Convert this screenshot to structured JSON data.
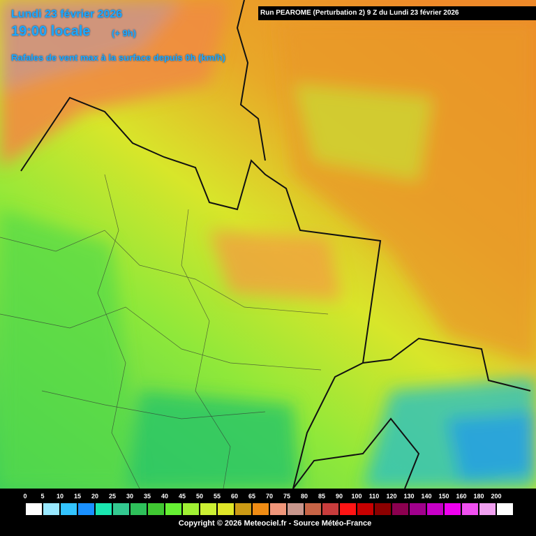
{
  "header": {
    "date": "Lundi 23 février 2026",
    "time": "19:00 locale",
    "offset": "(+ 9h)",
    "subtitle": "Rafales de vent max à la surface depuis 0h (km/h)"
  },
  "run_banner": "Run PEAROME (Perturbation 2) 9 Z du Lundi 23 février 2026",
  "legend": {
    "items": [
      {
        "label": 0,
        "color": "#ffffff"
      },
      {
        "label": 5,
        "color": "#99e8ff"
      },
      {
        "label": 10,
        "color": "#33c4ff"
      },
      {
        "label": 15,
        "color": "#1a90ff"
      },
      {
        "label": 20,
        "color": "#1ae6b0"
      },
      {
        "label": 25,
        "color": "#33c890"
      },
      {
        "label": 30,
        "color": "#2ec05a"
      },
      {
        "label": 35,
        "color": "#40c832"
      },
      {
        "label": 40,
        "color": "#66f033"
      },
      {
        "label": 45,
        "color": "#a0f033"
      },
      {
        "label": 50,
        "color": "#ccf033"
      },
      {
        "label": 55,
        "color": "#e0e628"
      },
      {
        "label": 60,
        "color": "#cc9a14"
      },
      {
        "label": 65,
        "color": "#f08c14"
      },
      {
        "label": 70,
        "color": "#f0967a"
      },
      {
        "label": 75,
        "color": "#c8968c"
      },
      {
        "label": 80,
        "color": "#c86446"
      },
      {
        "label": 85,
        "color": "#c83c3c"
      },
      {
        "label": 90,
        "color": "#ff1414"
      },
      {
        "label": 100,
        "color": "#c80000"
      },
      {
        "label": 110,
        "color": "#8c0000"
      },
      {
        "label": 120,
        "color": "#8c0050"
      },
      {
        "label": 130,
        "color": "#a0008c"
      },
      {
        "label": 140,
        "color": "#c800c8"
      },
      {
        "label": 150,
        "color": "#f000f0"
      },
      {
        "label": 160,
        "color": "#f050f0"
      },
      {
        "label": 180,
        "color": "#f0a0f0"
      },
      {
        "label": 200,
        "color": "#ffffff"
      }
    ]
  },
  "footer": "Copyright © 2026 Meteociel.fr - Source Météo-France"
}
